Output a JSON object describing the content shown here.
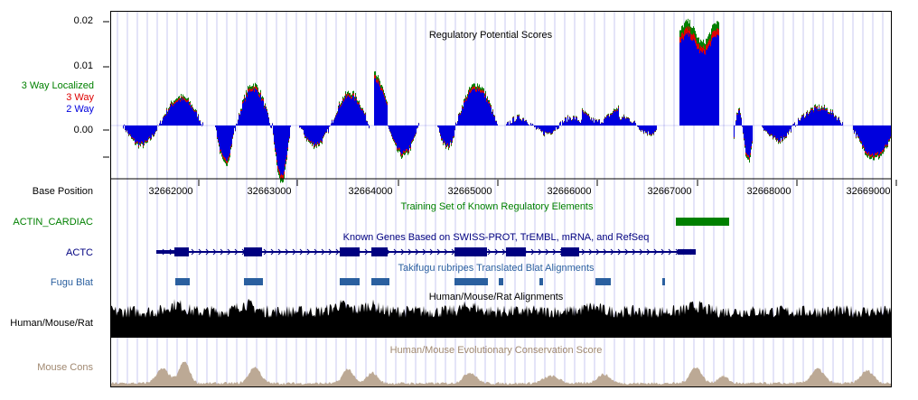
{
  "colors": {
    "green": "#008000",
    "red": "#dd0000",
    "blue": "#0000dd",
    "navy": "#000080",
    "steel": "#2a5f9f",
    "tan": "#a08870",
    "tan_fill": "#bca995",
    "guide": "#c8c8f0"
  },
  "score_axis": {
    "ticks": [
      "0.02",
      "0.01",
      "0.00"
    ],
    "values": [
      0.02,
      0.01,
      0.0
    ]
  },
  "tracks": {
    "regpot": {
      "title": "Regulatory Potential Scores",
      "legend": {
        "three_way_localized": "3 Way Localized",
        "three_way": "3 Way",
        "two_way": "2 Way"
      }
    },
    "ruler": {
      "label": "Base Position",
      "positions": [
        "32662000",
        "32663000",
        "32664000",
        "32665000",
        "32666000",
        "32667000",
        "32668000",
        "32669000"
      ]
    },
    "training": {
      "title": "Training Set of Known Regulatory Elements",
      "label": "ACTIN_CARDIAC"
    },
    "genes": {
      "title": "Known Genes Based on SWISS-PROT, TrEMBL, mRNA, and RefSeq",
      "label": "ACTC"
    },
    "fugu": {
      "title": "Takifugu rubripes Translated Blat Alignments",
      "label": "Fugu Blat"
    },
    "hmr": {
      "title": "Human/Mouse/Rat Alignments",
      "label": "Human/Mouse/Rat"
    },
    "cons": {
      "title": "Human/Mouse Evolutionary Conservation Score",
      "label": "Mouse Cons"
    }
  }
}
